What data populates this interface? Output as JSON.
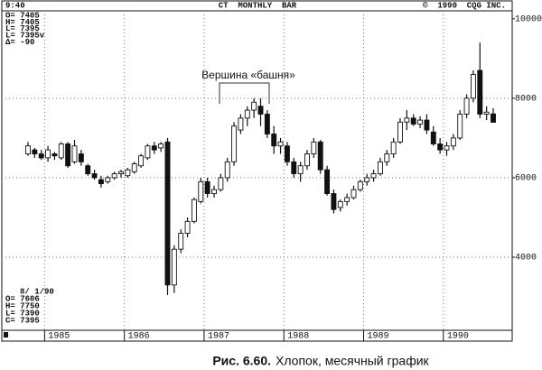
{
  "chart_data": {
    "type": "candlestick",
    "header_left": "9:40",
    "header_center": "CT  MONTHLY  BAR",
    "header_right": "©  1990  CQG INC.",
    "info_top": [
      "O= 7405",
      "H= 7405",
      "L= 7395",
      "L= 7395v",
      "Δ= -90"
    ],
    "info_bottom": [
      "8/ 1/90",
      "O= 7606",
      "H= 7750",
      "L= 7390",
      "C= 7395"
    ],
    "annotation": "Вершина «башня»",
    "categories": [
      null,
      null,
      null,
      "1985",
      null,
      null,
      null,
      null,
      null,
      null,
      null,
      null,
      null,
      null,
      null,
      "1986",
      null,
      null,
      null,
      null,
      null,
      null,
      null,
      null,
      null,
      null,
      null,
      "1987",
      null,
      null,
      null,
      null,
      null,
      null,
      null,
      null,
      null,
      null,
      null,
      "1988",
      null,
      null,
      null,
      null,
      null,
      null,
      null,
      null,
      null,
      null,
      null,
      "1989",
      null,
      null,
      null,
      null,
      null,
      null,
      null,
      null,
      null,
      null,
      null,
      "1990",
      null,
      null,
      null,
      null,
      null,
      null,
      null
    ],
    "open": [
      6600,
      6700,
      6600,
      6500,
      6600,
      6500,
      6850,
      6400,
      6600,
      6300,
      6100,
      5950,
      5900,
      6000,
      6100,
      6050,
      6150,
      6300,
      6500,
      6800,
      6750,
      6900,
      3300,
      4200,
      4600,
      4900,
      5400,
      5900,
      5600,
      5700,
      6000,
      6400,
      7200,
      7500,
      7700,
      7800,
      7600,
      7100,
      6800,
      6800,
      6400,
      6100,
      6300,
      6600,
      6900,
      6200,
      5600,
      5250,
      5400,
      5500,
      5700,
      5900,
      6000,
      6100,
      6400,
      6600,
      6900,
      7400,
      7500,
      7350,
      7450,
      7150,
      6850,
      6700,
      6800,
      7000,
      7600,
      8000,
      8700,
      7600,
      7606
    ],
    "high": [
      6900,
      6750,
      6700,
      6800,
      6650,
      6900,
      6900,
      6950,
      6700,
      6350,
      6200,
      6050,
      6050,
      6150,
      6200,
      6250,
      6400,
      6600,
      6850,
      6900,
      6900,
      7000,
      4300,
      4700,
      5000,
      5500,
      6000,
      6000,
      5800,
      6100,
      6500,
      7400,
      7600,
      7800,
      8000,
      8000,
      7700,
      7300,
      7000,
      6900,
      6500,
      6400,
      6700,
      7000,
      6950,
      6300,
      5700,
      5450,
      5600,
      5800,
      5950,
      6100,
      6200,
      6500,
      6700,
      7000,
      7500,
      7700,
      7600,
      7550,
      7600,
      7300,
      7000,
      6900,
      7100,
      7700,
      8100,
      8700,
      9400,
      7800,
      7750
    ],
    "low": [
      6550,
      6500,
      6450,
      6400,
      6450,
      6450,
      6250,
      6350,
      6300,
      6050,
      5950,
      5750,
      5850,
      5950,
      6000,
      6000,
      6100,
      6250,
      6450,
      6600,
      6650,
      3050,
      3100,
      4100,
      4500,
      4850,
      5350,
      5500,
      5500,
      5650,
      5900,
      6300,
      7100,
      7300,
      7500,
      7300,
      7000,
      6600,
      6600,
      6300,
      6000,
      5900,
      6200,
      6500,
      6100,
      5550,
      5100,
      5150,
      5300,
      5450,
      5650,
      5800,
      5900,
      6050,
      6300,
      6500,
      6850,
      7200,
      7300,
      7250,
      7100,
      6800,
      6600,
      6550,
      6700,
      6950,
      7500,
      7900,
      7500,
      7450,
      7390
    ],
    "close": [
      6800,
      6600,
      6500,
      6700,
      6550,
      6850,
      6300,
      6800,
      6400,
      6100,
      6000,
      5850,
      6000,
      6100,
      6150,
      6200,
      6350,
      6550,
      6800,
      6700,
      6850,
      3300,
      4200,
      4600,
      4900,
      5450,
      5900,
      5600,
      5700,
      6000,
      6400,
      7300,
      7500,
      7700,
      7900,
      7600,
      7100,
      6800,
      6900,
      6400,
      6100,
      6300,
      6600,
      6900,
      6200,
      5600,
      5200,
      5400,
      5500,
      5700,
      5900,
      6000,
      6100,
      6400,
      6600,
      6900,
      7400,
      7500,
      7350,
      7450,
      7200,
      6850,
      6700,
      6800,
      7000,
      7600,
      8000,
      8600,
      7600,
      7650,
      7395
    ],
    "up_color": "#ffffff",
    "down_color": "#111111",
    "ylim": [
      2160,
      10200
    ],
    "yticks": [
      4000,
      6000,
      8000,
      10000
    ],
    "grid": true
  },
  "caption": {
    "label": "Рис. 6.60.",
    "text": "Хлопок, месячный график"
  }
}
